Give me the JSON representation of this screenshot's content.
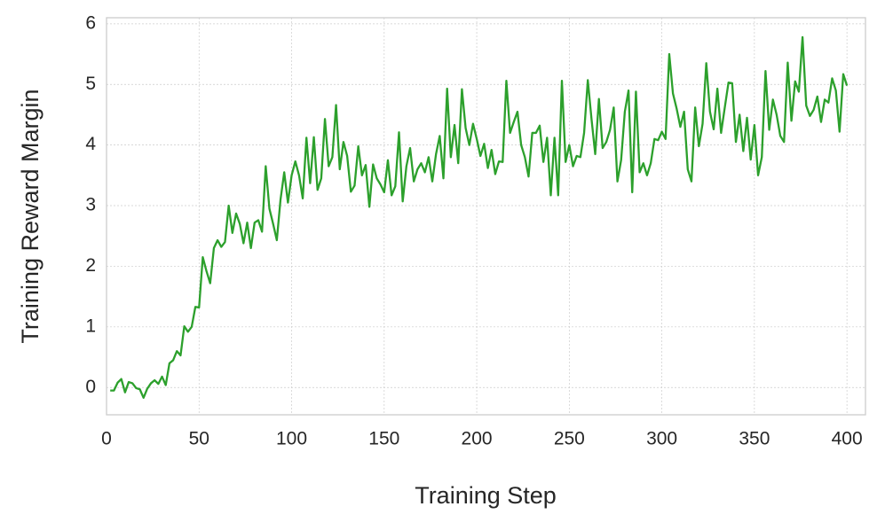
{
  "chart_data": {
    "type": "line",
    "xlabel": "Training Step",
    "ylabel": "Training Reward Margin",
    "x": [
      2,
      4,
      6,
      8,
      10,
      12,
      14,
      16,
      18,
      20,
      22,
      24,
      26,
      28,
      30,
      32,
      34,
      36,
      38,
      40,
      42,
      44,
      46,
      48,
      50,
      52,
      54,
      56,
      58,
      60,
      62,
      64,
      66,
      68,
      70,
      72,
      74,
      76,
      78,
      80,
      82,
      84,
      86,
      88,
      90,
      92,
      94,
      96,
      98,
      100,
      102,
      104,
      106,
      108,
      110,
      112,
      114,
      116,
      118,
      120,
      122,
      124,
      126,
      128,
      130,
      132,
      134,
      136,
      138,
      140,
      142,
      144,
      146,
      148,
      150,
      152,
      154,
      156,
      158,
      160,
      162,
      164,
      166,
      168,
      170,
      172,
      174,
      176,
      178,
      180,
      182,
      184,
      186,
      188,
      190,
      192,
      194,
      196,
      198,
      200,
      202,
      204,
      206,
      208,
      210,
      212,
      214,
      216,
      218,
      220,
      222,
      224,
      226,
      228,
      230,
      232,
      234,
      236,
      238,
      240,
      242,
      244,
      246,
      248,
      250,
      252,
      254,
      256,
      258,
      260,
      262,
      264,
      266,
      268,
      270,
      272,
      274,
      276,
      278,
      280,
      282,
      284,
      286,
      288,
      290,
      292,
      294,
      296,
      298,
      300,
      302,
      304,
      306,
      308,
      310,
      312,
      314,
      316,
      318,
      320,
      322,
      324,
      326,
      328,
      330,
      332,
      334,
      336,
      338,
      340,
      342,
      344,
      346,
      348,
      350,
      352,
      354,
      356,
      358,
      360,
      362,
      364,
      366,
      368,
      370,
      372,
      374,
      376,
      378,
      380,
      382,
      384,
      386,
      388,
      390,
      392,
      394,
      396,
      398,
      400
    ],
    "series": [
      {
        "color": "#2ca02c",
        "values": [
          -0.05,
          -0.05,
          0.08,
          0.14,
          -0.08,
          0.09,
          0.07,
          -0.01,
          -0.03,
          -0.17,
          -0.02,
          0.07,
          0.12,
          0.06,
          0.18,
          0.04,
          0.4,
          0.45,
          0.6,
          0.53,
          1.01,
          0.92,
          1.0,
          1.33,
          1.32,
          2.15,
          1.92,
          1.72,
          2.3,
          2.43,
          2.32,
          2.4,
          3.0,
          2.55,
          2.87,
          2.7,
          2.38,
          2.72,
          2.3,
          2.72,
          2.76,
          2.57,
          3.65,
          2.95,
          2.7,
          2.43,
          3.1,
          3.55,
          3.05,
          3.5,
          3.73,
          3.5,
          3.12,
          4.12,
          3.37,
          4.13,
          3.26,
          3.45,
          4.43,
          3.65,
          3.8,
          4.66,
          3.6,
          4.05,
          3.82,
          3.23,
          3.33,
          3.98,
          3.5,
          3.67,
          2.98,
          3.68,
          3.45,
          3.35,
          3.22,
          3.75,
          3.17,
          3.32,
          4.21,
          3.07,
          3.65,
          3.95,
          3.4,
          3.6,
          3.7,
          3.55,
          3.8,
          3.4,
          3.85,
          4.15,
          3.45,
          4.93,
          3.8,
          4.33,
          3.7,
          4.92,
          4.28,
          4.0,
          4.35,
          4.1,
          3.82,
          4.02,
          3.62,
          3.92,
          3.52,
          3.73,
          3.72,
          5.06,
          4.2,
          4.38,
          4.55,
          4.0,
          3.8,
          3.48,
          4.2,
          4.2,
          4.32,
          3.72,
          4.12,
          3.17,
          4.12,
          3.17,
          5.06,
          3.72,
          4.0,
          3.65,
          3.82,
          3.8,
          4.2,
          5.07,
          4.43,
          3.85,
          4.76,
          3.95,
          4.05,
          4.25,
          4.62,
          3.4,
          3.75,
          4.55,
          4.9,
          3.22,
          4.88,
          3.55,
          3.7,
          3.5,
          3.7,
          4.1,
          4.08,
          4.22,
          4.1,
          5.5,
          4.85,
          4.6,
          4.3,
          4.55,
          3.6,
          3.4,
          4.62,
          3.98,
          4.35,
          5.35,
          4.55,
          4.26,
          4.93,
          4.2,
          4.62,
          5.03,
          5.02,
          4.05,
          4.5,
          3.9,
          4.45,
          3.76,
          4.33,
          3.5,
          3.8,
          5.22,
          4.25,
          4.75,
          4.5,
          4.15,
          4.05,
          5.36,
          4.4,
          5.05,
          4.88,
          5.78,
          4.65,
          4.48,
          4.58,
          4.8,
          4.38,
          4.75,
          4.7,
          5.1,
          4.9,
          4.22,
          5.17,
          4.98
        ]
      }
    ],
    "xlim": [
      0,
      410
    ],
    "ylim": [
      -0.45,
      6.1
    ],
    "xticks": [
      0,
      50,
      100,
      150,
      200,
      250,
      300,
      350,
      400
    ],
    "yticks": [
      0,
      1,
      2,
      3,
      4,
      5,
      6
    ],
    "grid": true
  }
}
